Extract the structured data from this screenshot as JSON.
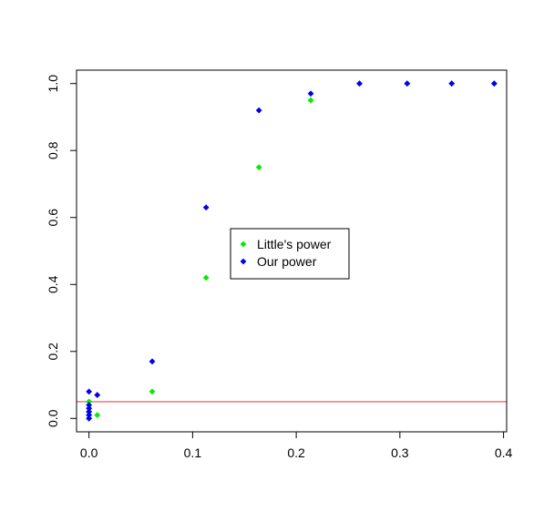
{
  "chart_data": {
    "type": "scatter",
    "title": "",
    "xlabel": "",
    "ylabel": "",
    "xlim": [
      -0.012,
      0.403
    ],
    "ylim": [
      -0.04,
      1.04
    ],
    "x_ticks": [
      0.0,
      0.1,
      0.2,
      0.3,
      0.4
    ],
    "x_tick_labels": [
      "0.0",
      "0.1",
      "0.2",
      "0.3",
      "0.4"
    ],
    "y_ticks": [
      0.0,
      0.2,
      0.4,
      0.6,
      0.8,
      1.0
    ],
    "y_tick_labels": [
      "0.0",
      "0.2",
      "0.4",
      "0.6",
      "0.8",
      "1.0"
    ],
    "grid": false,
    "legend_position": "center",
    "reference_line": {
      "y": 0.05,
      "color": "#f08080"
    },
    "series": [
      {
        "name": "Little's power",
        "color": "#00ee00",
        "marker": "diamond",
        "points": [
          {
            "x": 0.0,
            "y": 0.0
          },
          {
            "x": 0.0,
            "y": 0.01
          },
          {
            "x": 0.0,
            "y": 0.02
          },
          {
            "x": 0.0,
            "y": 0.03
          },
          {
            "x": 0.0,
            "y": 0.05
          },
          {
            "x": 0.008,
            "y": 0.01
          },
          {
            "x": 0.061,
            "y": 0.08
          },
          {
            "x": 0.113,
            "y": 0.42
          },
          {
            "x": 0.164,
            "y": 0.75
          },
          {
            "x": 0.214,
            "y": 0.95
          },
          {
            "x": 0.261,
            "y": 1.0
          },
          {
            "x": 0.307,
            "y": 1.0
          },
          {
            "x": 0.35,
            "y": 1.0
          },
          {
            "x": 0.391,
            "y": 1.0
          }
        ]
      },
      {
        "name": "Our power",
        "color": "#0000ee",
        "marker": "diamond",
        "points": [
          {
            "x": 0.0,
            "y": 0.0
          },
          {
            "x": 0.0,
            "y": 0.01
          },
          {
            "x": 0.0,
            "y": 0.02
          },
          {
            "x": 0.0,
            "y": 0.03
          },
          {
            "x": 0.0,
            "y": 0.04
          },
          {
            "x": 0.0,
            "y": 0.08
          },
          {
            "x": 0.008,
            "y": 0.07
          },
          {
            "x": 0.061,
            "y": 0.17
          },
          {
            "x": 0.113,
            "y": 0.63
          },
          {
            "x": 0.164,
            "y": 0.92
          },
          {
            "x": 0.214,
            "y": 0.97
          },
          {
            "x": 0.261,
            "y": 1.0
          },
          {
            "x": 0.307,
            "y": 1.0
          },
          {
            "x": 0.35,
            "y": 1.0
          },
          {
            "x": 0.391,
            "y": 1.0
          }
        ]
      }
    ]
  }
}
